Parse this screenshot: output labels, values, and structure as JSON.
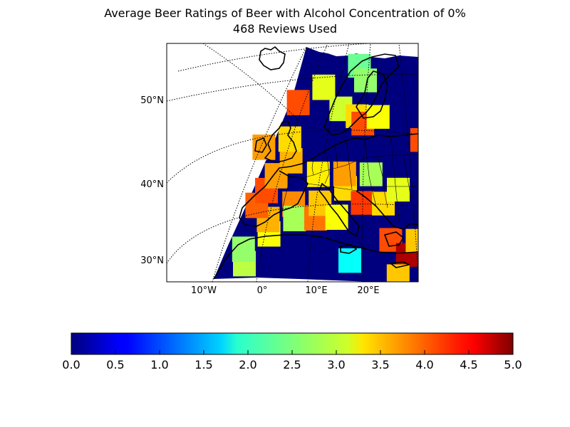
{
  "chart_data": {
    "type": "heatmap",
    "title": "Average Beer Ratings of Beer with Alcohol Concentration of 0%",
    "subtitle": "468 Reviews Used",
    "colormap": "jet",
    "value_range": [
      0,
      5
    ],
    "lat_labels": [
      "50°N",
      "40°N",
      "30°N"
    ],
    "lon_labels": [
      "10°W",
      "0°",
      "10°E",
      "20°E"
    ],
    "colorbar_ticks": [
      "0.0",
      "0.5",
      "1.0",
      "1.5",
      "2.0",
      "2.5",
      "3.0",
      "3.5",
      "4.0",
      "4.5",
      "5.0"
    ],
    "colorbar_values": [
      0,
      0.5,
      1.0,
      1.5,
      2.0,
      2.5,
      3.0,
      3.5,
      4.0,
      4.5,
      5.0
    ],
    "projection": "lambert-conformal",
    "lon_range": [
      -15,
      30
    ],
    "lat_range": [
      27,
      60
    ],
    "cells": [
      {
        "lon": -5,
        "lat": 30,
        "value": 2.8
      },
      {
        "lon": -5,
        "lat": 32,
        "value": 2.6
      },
      {
        "lon": 0,
        "lat": 34,
        "value": 3.1
      },
      {
        "lon": 0,
        "lat": 36,
        "value": 3.5
      },
      {
        "lon": -2,
        "lat": 38,
        "value": 3.9
      },
      {
        "lon": 0,
        "lat": 40,
        "value": 4.0
      },
      {
        "lon": 2,
        "lat": 42,
        "value": 3.6
      },
      {
        "lon": 5,
        "lat": 38,
        "value": 3.7
      },
      {
        "lon": 5,
        "lat": 36,
        "value": 2.7
      },
      {
        "lon": 9,
        "lat": 36,
        "value": 3.8
      },
      {
        "lon": 10,
        "lat": 38,
        "value": 3.4
      },
      {
        "lon": 5,
        "lat": 44,
        "value": 3.5
      },
      {
        "lon": 0,
        "lat": 46,
        "value": 3.6
      },
      {
        "lon": 5,
        "lat": 47,
        "value": 3.3
      },
      {
        "lon": 10,
        "lat": 42,
        "value": 3.2
      },
      {
        "lon": 15,
        "lat": 40,
        "value": 3.3
      },
      {
        "lon": 15,
        "lat": 42,
        "value": 3.6
      },
      {
        "lon": 20,
        "lat": 42,
        "value": 2.7
      },
      {
        "lon": 18,
        "lat": 38,
        "value": 4.1
      },
      {
        "lon": 22,
        "lat": 38,
        "value": 3.3
      },
      {
        "lon": 25,
        "lat": 40,
        "value": 3.0
      },
      {
        "lon": 13,
        "lat": 36,
        "value": 3.1
      },
      {
        "lon": 23,
        "lat": 33,
        "value": 4.0
      },
      {
        "lon": 26,
        "lat": 31,
        "value": 4.8
      },
      {
        "lon": 28,
        "lat": 33,
        "value": 3.4
      },
      {
        "lon": 15,
        "lat": 30,
        "value": 1.9
      },
      {
        "lon": 24,
        "lat": 28,
        "value": 3.4
      },
      {
        "lon": 7,
        "lat": 52,
        "value": 4.0
      },
      {
        "lon": 12,
        "lat": 54,
        "value": 3.0
      },
      {
        "lon": 15,
        "lat": 51,
        "value": 2.9
      },
      {
        "lon": 18,
        "lat": 50,
        "value": 3.3
      },
      {
        "lon": 19,
        "lat": 49,
        "value": 4.0
      },
      {
        "lon": 22,
        "lat": 50,
        "value": 3.1
      },
      {
        "lon": 19,
        "lat": 57,
        "value": 2.4
      },
      {
        "lon": 20,
        "lat": 55,
        "value": 2.6
      },
      {
        "lon": 30,
        "lat": 47,
        "value": 4.0
      }
    ]
  }
}
